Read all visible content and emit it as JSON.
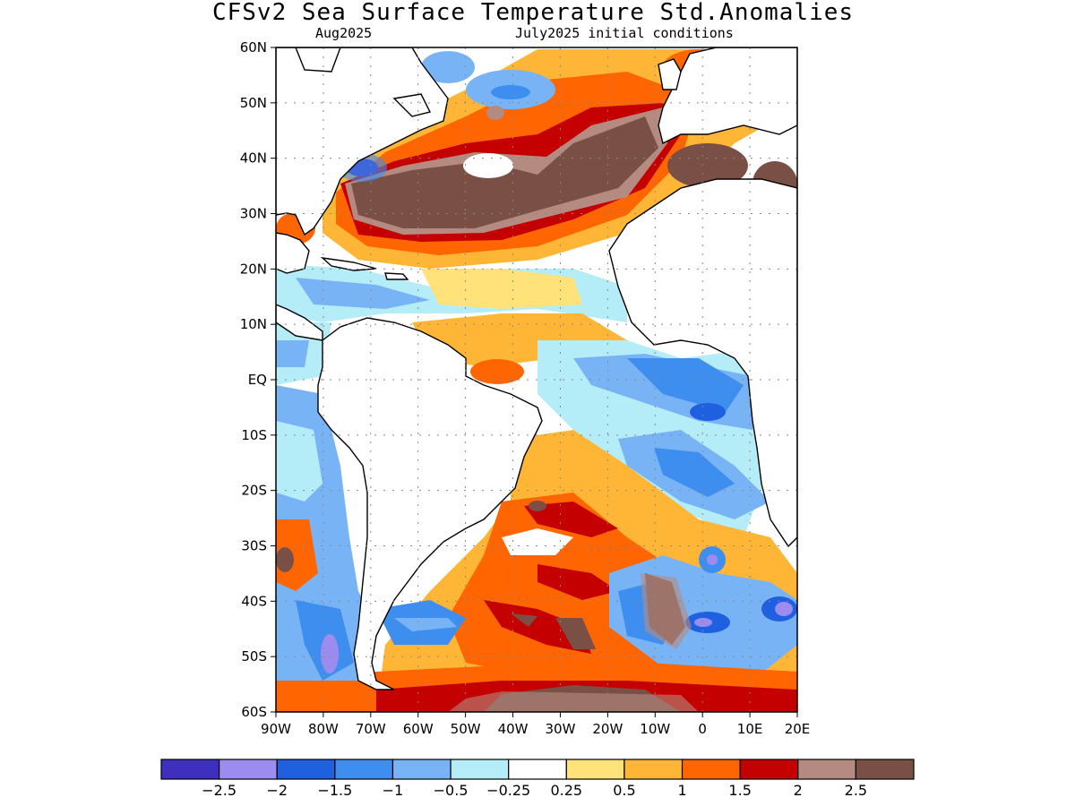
{
  "title": "CFSv2 Sea Surface Temperature Std.Anomalies",
  "valid_label": "Aug2025",
  "init_label": "July2025 initial conditions",
  "lat_labels": [
    "60N",
    "50N",
    "40N",
    "30N",
    "20N",
    "10N",
    "EQ",
    "10S",
    "20S",
    "30S",
    "40S",
    "50S",
    "60S"
  ],
  "lon_labels": [
    "90W",
    "80W",
    "70W",
    "60W",
    "50W",
    "40W",
    "30W",
    "20W",
    "10W",
    "0",
    "10E",
    "20E"
  ],
  "colorbar": {
    "colors": [
      "#3f2fbf",
      "#9d8cf0",
      "#1f60e0",
      "#3e8ef0",
      "#78b4f5",
      "#b4ecf8",
      "#ffffff",
      "#ffe27a",
      "#ffb637",
      "#ff6500",
      "#c40000",
      "#b58a80",
      "#7a5046"
    ],
    "labels": [
      "−2.5",
      "−2",
      "−1.5",
      "−1",
      "−0.5",
      "−0.25",
      "0.25",
      "0.5",
      "1",
      "1.5",
      "2",
      "2.5"
    ]
  },
  "colors": {
    "land": "#ffffff",
    "coast": "#000000",
    "grid": "#888888"
  }
}
